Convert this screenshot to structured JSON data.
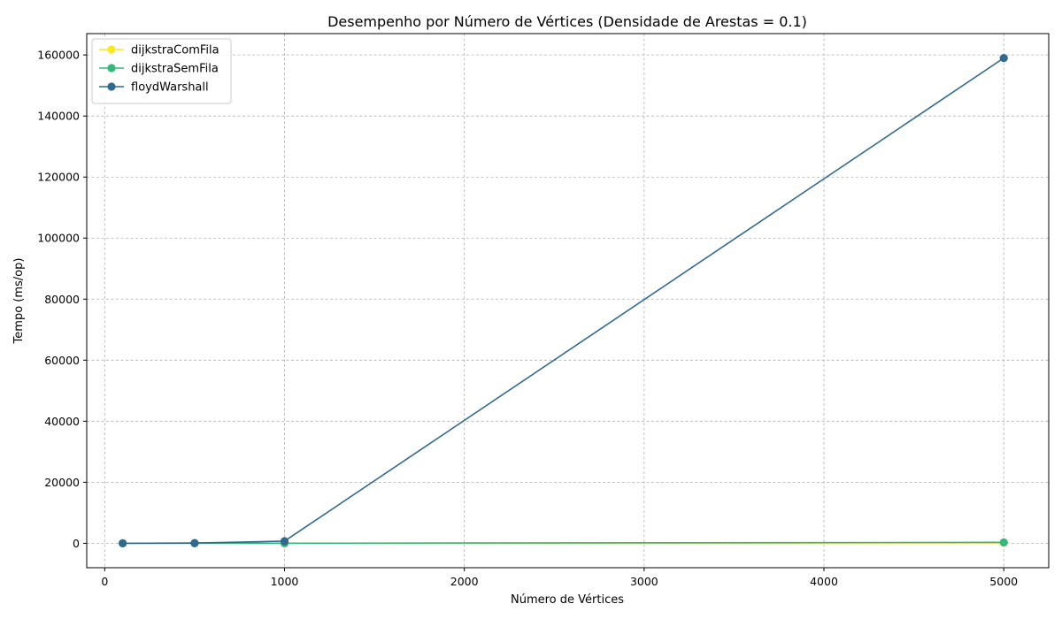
{
  "chart_data": {
    "type": "line",
    "title": "Desempenho por Número de Vértices (Densidade de Arestas = 0.1)",
    "xlabel": "Número de Vértices",
    "ylabel": "Tempo (ms/op)",
    "xlim": [
      -100,
      5250
    ],
    "ylim": [
      -8000,
      167000
    ],
    "xticks": [
      0,
      1000,
      2000,
      3000,
      4000,
      5000
    ],
    "yticks": [
      0,
      20000,
      40000,
      60000,
      80000,
      100000,
      120000,
      140000,
      160000
    ],
    "grid": true,
    "legend_position": "top-left",
    "x": [
      100,
      500,
      1000,
      5000
    ],
    "series": [
      {
        "name": "dijkstraComFila",
        "color": "#fde725",
        "values": [
          1,
          3,
          10,
          150
        ]
      },
      {
        "name": "dijkstraSemFila",
        "color": "#35b779",
        "values": [
          1,
          5,
          20,
          300
        ]
      },
      {
        "name": "floydWarshall",
        "color": "#31688e",
        "values": [
          5,
          80,
          700,
          159000
        ]
      }
    ]
  }
}
